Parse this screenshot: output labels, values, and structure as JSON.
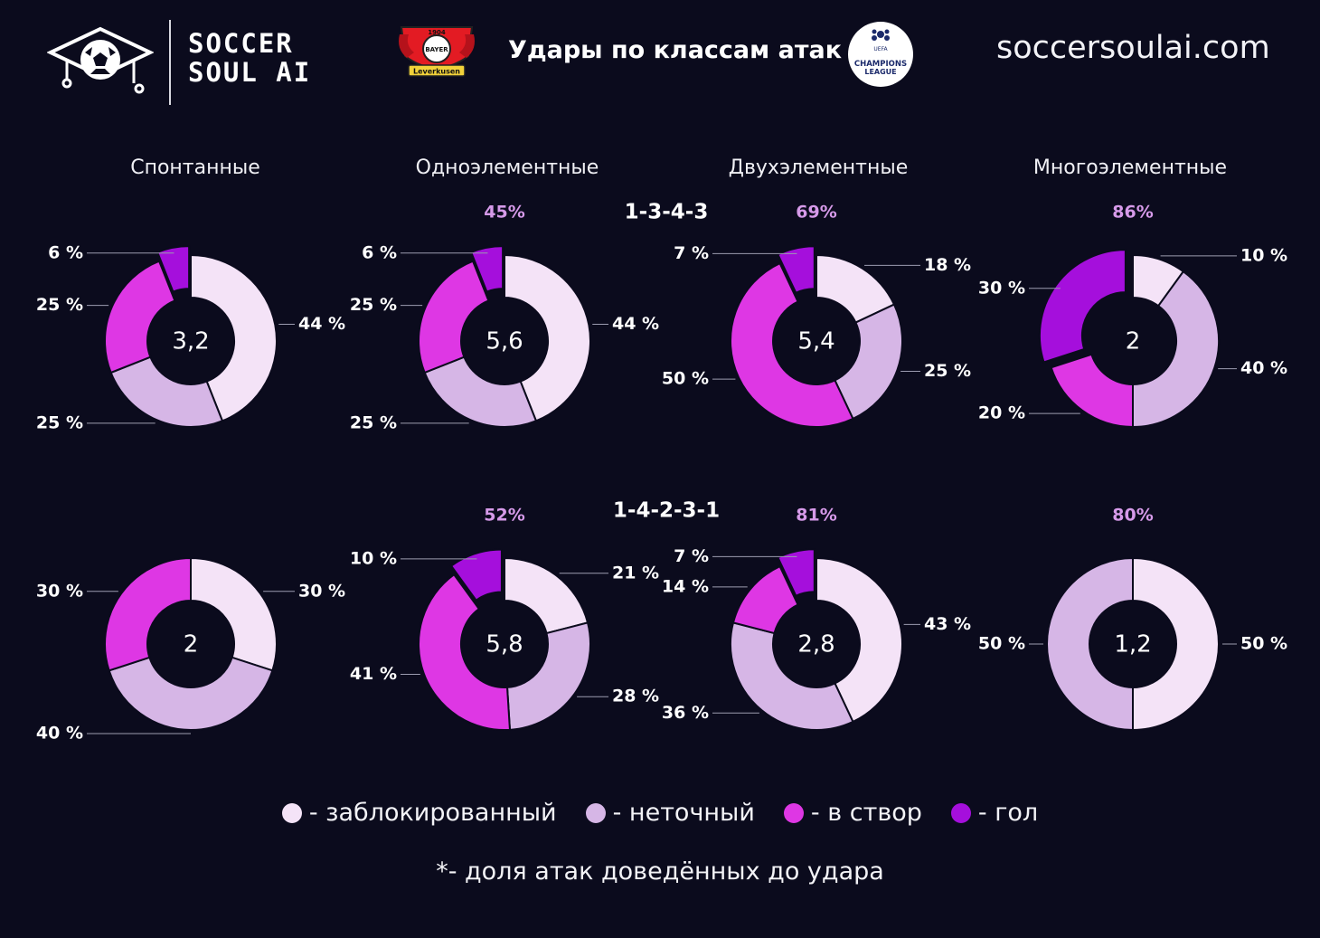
{
  "header": {
    "brand_line1": "SOCCER",
    "brand_line2": "SOUL AI",
    "title": "Удары по классам атак",
    "site": "soccersoulai.com",
    "club_badge": {
      "year": "1904",
      "top_text": "BAYER",
      "bottom_text": "Leverkusen"
    },
    "ucl_badge": {
      "line1": "UEFA",
      "line2": "CHAMPIONS",
      "line3": "LEAGUE"
    }
  },
  "columns": [
    "Спонтанные",
    "Одноэлементные",
    "Двухэлементные",
    "Многоэлементные"
  ],
  "colors": {
    "blocked": "#f4e3f7",
    "off_target": "#d6b6e6",
    "on_target": "#de37e4",
    "goal": "#a50fdc"
  },
  "legend": [
    {
      "key": "blocked",
      "label": "- заблокированный"
    },
    {
      "key": "off_target",
      "label": "- неточный"
    },
    {
      "key": "on_target",
      "label": "- в створ"
    },
    {
      "key": "goal",
      "label": "- гол"
    }
  ],
  "footnote": "*- доля атак доведённых до удара",
  "chart_data": [
    {
      "type": "pie",
      "formation": "1-3-4-3",
      "class": "Спонтанные",
      "center": "3,2",
      "share": "",
      "series": [
        {
          "key": "blocked",
          "value": 44,
          "label": "44 %"
        },
        {
          "key": "off_target",
          "value": 25,
          "label": "25 %"
        },
        {
          "key": "on_target",
          "value": 25,
          "label": "25 %"
        },
        {
          "key": "goal",
          "value": 6,
          "label": "6 %"
        }
      ]
    },
    {
      "type": "pie",
      "formation": "1-3-4-3",
      "class": "Одноэлементные",
      "center": "5,6",
      "share": "45%",
      "series": [
        {
          "key": "blocked",
          "value": 44,
          "label": "44 %"
        },
        {
          "key": "off_target",
          "value": 25,
          "label": "25 %"
        },
        {
          "key": "on_target",
          "value": 25,
          "label": "25 %"
        },
        {
          "key": "goal",
          "value": 6,
          "label": "6 %"
        }
      ]
    },
    {
      "type": "pie",
      "formation": "1-3-4-3",
      "class": "Двухэлементные",
      "center": "5,4",
      "share": "69%",
      "series": [
        {
          "key": "blocked",
          "value": 18,
          "label": "18 %"
        },
        {
          "key": "off_target",
          "value": 25,
          "label": "25 %"
        },
        {
          "key": "on_target",
          "value": 50,
          "label": "50 %"
        },
        {
          "key": "goal",
          "value": 7,
          "label": "7 %"
        }
      ]
    },
    {
      "type": "pie",
      "formation": "1-3-4-3",
      "class": "Многоэлементные",
      "center": "2",
      "share": "86%",
      "series": [
        {
          "key": "blocked",
          "value": 10,
          "label": "10 %"
        },
        {
          "key": "off_target",
          "value": 40,
          "label": "40 %"
        },
        {
          "key": "on_target",
          "value": 20,
          "label": "20 %"
        },
        {
          "key": "goal",
          "value": 30,
          "label": "30 %"
        }
      ]
    },
    {
      "type": "pie",
      "formation": "1-4-2-3-1",
      "class": "Спонтанные",
      "center": "2",
      "share": "",
      "series": [
        {
          "key": "blocked",
          "value": 30,
          "label": "30 %"
        },
        {
          "key": "off_target",
          "value": 40,
          "label": "40 %"
        },
        {
          "key": "on_target",
          "value": 30,
          "label": "30 %"
        },
        {
          "key": "goal",
          "value": 0,
          "label": ""
        }
      ]
    },
    {
      "type": "pie",
      "formation": "1-4-2-3-1",
      "class": "Одноэлементные",
      "center": "5,8",
      "share": "52%",
      "series": [
        {
          "key": "blocked",
          "value": 21,
          "label": "21 %"
        },
        {
          "key": "off_target",
          "value": 28,
          "label": "28 %"
        },
        {
          "key": "on_target",
          "value": 41,
          "label": "41 %"
        },
        {
          "key": "goal",
          "value": 10,
          "label": "10 %"
        }
      ]
    },
    {
      "type": "pie",
      "formation": "1-4-2-3-1",
      "class": "Двухэлементные",
      "center": "2,8",
      "share": "81%",
      "series": [
        {
          "key": "blocked",
          "value": 43,
          "label": "43 %"
        },
        {
          "key": "off_target",
          "value": 36,
          "label": "36 %"
        },
        {
          "key": "on_target",
          "value": 14,
          "label": "14 %"
        },
        {
          "key": "goal",
          "value": 7,
          "label": "7 %"
        }
      ]
    },
    {
      "type": "pie",
      "formation": "1-4-2-3-1",
      "class": "Многоэлементные",
      "center": "1,2",
      "share": "80%",
      "series": [
        {
          "key": "blocked",
          "value": 50,
          "label": "50 %"
        },
        {
          "key": "off_target",
          "value": 50,
          "label": "50 %"
        },
        {
          "key": "on_target",
          "value": 0,
          "label": ""
        },
        {
          "key": "goal",
          "value": 0,
          "label": ""
        }
      ]
    }
  ]
}
